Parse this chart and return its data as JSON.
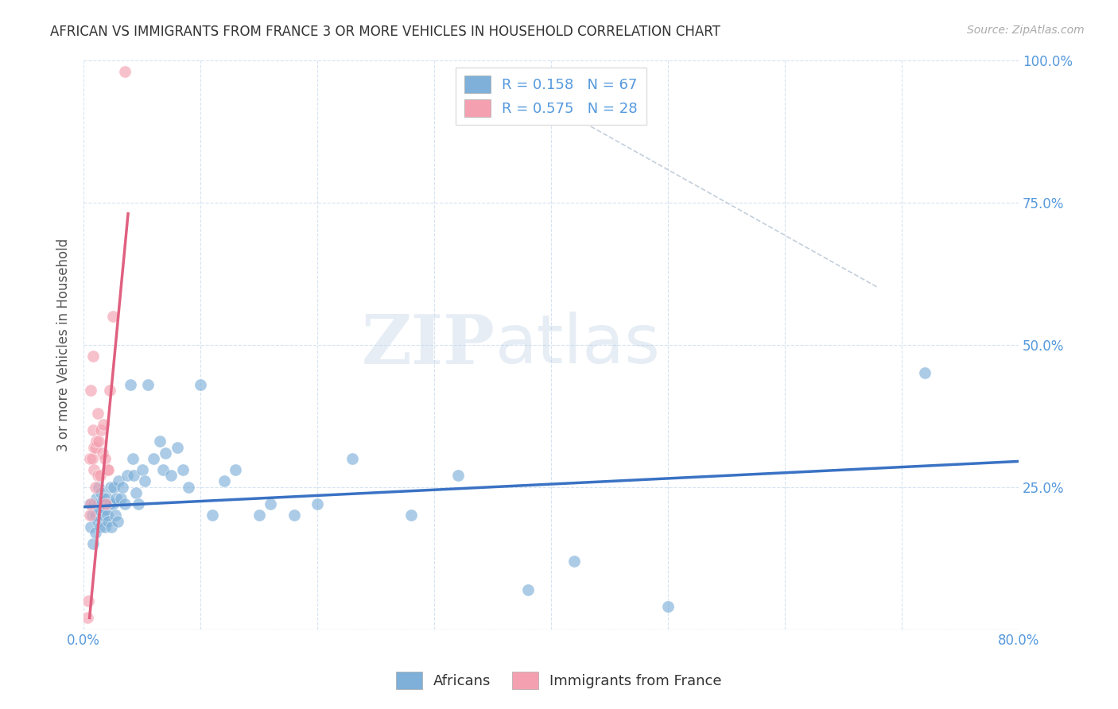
{
  "title": "AFRICAN VS IMMIGRANTS FROM FRANCE 3 OR MORE VEHICLES IN HOUSEHOLD CORRELATION CHART",
  "source": "Source: ZipAtlas.com",
  "ylabel": "3 or more Vehicles in Household",
  "watermark_zip": "ZIP",
  "watermark_atlas": "atlas",
  "xlim": [
    0.0,
    0.8
  ],
  "ylim": [
    0.0,
    1.0
  ],
  "legend_africans": "Africans",
  "legend_france": "Immigrants from France",
  "R_africans": 0.158,
  "N_africans": 67,
  "R_france": 0.575,
  "N_france": 28,
  "blue_color": "#7EB0D9",
  "pink_color": "#F4A0B0",
  "blue_line_color": "#3A72C4",
  "pink_line_color": "#E06080",
  "title_color": "#333333",
  "axis_color": "#5599DD",
  "background_color": "#FFFFFF",
  "africans_x": [
    0.005,
    0.006,
    0.007,
    0.008,
    0.009,
    0.01,
    0.01,
    0.011,
    0.012,
    0.012,
    0.013,
    0.013,
    0.014,
    0.015,
    0.015,
    0.016,
    0.017,
    0.018,
    0.018,
    0.019,
    0.02,
    0.02,
    0.021,
    0.022,
    0.023,
    0.024,
    0.025,
    0.026,
    0.027,
    0.028,
    0.029,
    0.03,
    0.032,
    0.033,
    0.035,
    0.037,
    0.04,
    0.042,
    0.043,
    0.045,
    0.047,
    0.05,
    0.052,
    0.055,
    0.06,
    0.065,
    0.068,
    0.07,
    0.075,
    0.08,
    0.085,
    0.09,
    0.1,
    0.11,
    0.12,
    0.13,
    0.15,
    0.16,
    0.18,
    0.2,
    0.23,
    0.28,
    0.32,
    0.38,
    0.42,
    0.5,
    0.72
  ],
  "africans_y": [
    0.22,
    0.18,
    0.2,
    0.15,
    0.22,
    0.2,
    0.17,
    0.23,
    0.19,
    0.22,
    0.25,
    0.21,
    0.18,
    0.24,
    0.22,
    0.2,
    0.23,
    0.22,
    0.18,
    0.21,
    0.2,
    0.23,
    0.19,
    0.22,
    0.25,
    0.18,
    0.22,
    0.25,
    0.2,
    0.23,
    0.19,
    0.26,
    0.23,
    0.25,
    0.22,
    0.27,
    0.43,
    0.3,
    0.27,
    0.24,
    0.22,
    0.28,
    0.26,
    0.43,
    0.3,
    0.33,
    0.28,
    0.31,
    0.27,
    0.32,
    0.28,
    0.25,
    0.43,
    0.2,
    0.26,
    0.28,
    0.2,
    0.22,
    0.2,
    0.22,
    0.3,
    0.2,
    0.27,
    0.07,
    0.12,
    0.04,
    0.45
  ],
  "france_x": [
    0.003,
    0.004,
    0.005,
    0.005,
    0.006,
    0.006,
    0.007,
    0.008,
    0.008,
    0.009,
    0.009,
    0.01,
    0.01,
    0.011,
    0.012,
    0.012,
    0.013,
    0.014,
    0.015,
    0.016,
    0.017,
    0.018,
    0.019,
    0.02,
    0.021,
    0.022,
    0.025,
    0.035
  ],
  "france_y": [
    0.02,
    0.05,
    0.2,
    0.3,
    0.22,
    0.42,
    0.3,
    0.35,
    0.48,
    0.28,
    0.32,
    0.25,
    0.32,
    0.33,
    0.27,
    0.38,
    0.33,
    0.27,
    0.35,
    0.31,
    0.36,
    0.3,
    0.22,
    0.28,
    0.28,
    0.42,
    0.55,
    0.98
  ],
  "diag_line_x": [
    0.35,
    0.68
  ],
  "diag_line_y": [
    0.98,
    0.6
  ]
}
